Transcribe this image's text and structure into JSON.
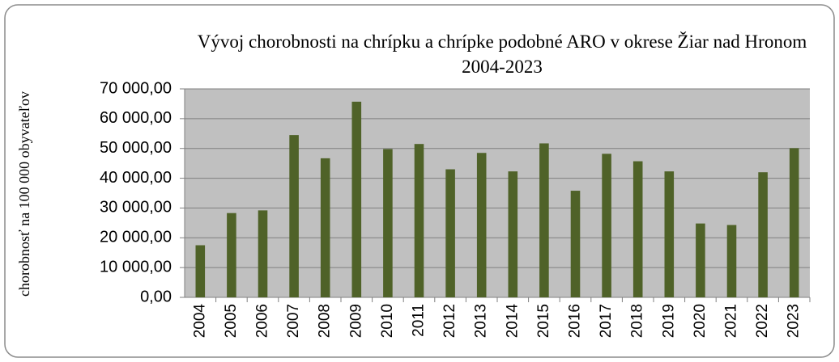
{
  "chart_data": {
    "type": "bar",
    "title": "Vývoj chorobnosti na chrípku a chrípke podobné ARO v okrese Žiar nad Hronom 2004-2023",
    "y_label": "chorobnosť na 100 000 obyvateľov",
    "categories": [
      "2004",
      "2005",
      "2006",
      "2007",
      "2008",
      "2009",
      "2010",
      "2011",
      "2012",
      "2013",
      "2014",
      "2015",
      "2016",
      "2017",
      "2018",
      "2019",
      "2020",
      "2021",
      "2022",
      "2023"
    ],
    "values": [
      17500,
      28300,
      29200,
      54500,
      46700,
      65700,
      49800,
      51500,
      43000,
      48500,
      42300,
      51700,
      35800,
      48200,
      45700,
      42300,
      24800,
      24300,
      42000,
      50100
    ],
    "color": "#4f6228",
    "ylim": [
      0,
      70000
    ],
    "yticks": [
      {
        "value": 0,
        "label": "0,00"
      },
      {
        "value": 10000,
        "label": "10 000,00"
      },
      {
        "value": 20000,
        "label": "20 000,00"
      },
      {
        "value": 30000,
        "label": "30 000,00"
      },
      {
        "value": 40000,
        "label": "40 000,00"
      },
      {
        "value": 50000,
        "label": "50 000,00"
      },
      {
        "value": 60000,
        "label": "60 000,00"
      },
      {
        "value": 70000,
        "label": "70 000,00"
      }
    ],
    "grid": true
  }
}
